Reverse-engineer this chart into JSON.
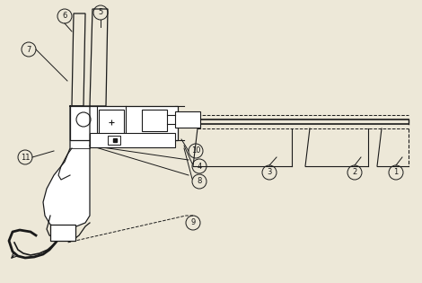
{
  "bg_color": "#ede8d8",
  "line_color": "#1a1a1a",
  "figsize": [
    4.7,
    3.15
  ],
  "dpi": 100
}
